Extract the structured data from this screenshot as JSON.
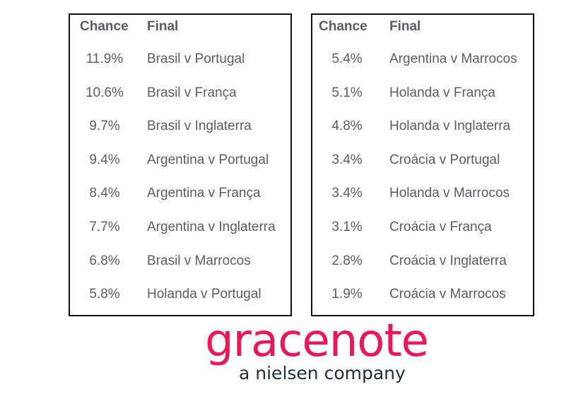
{
  "headers": {
    "chance": "Chance",
    "final": "Final"
  },
  "left": [
    {
      "chance": "11.9%",
      "final": "Brasil v Portugal"
    },
    {
      "chance": "10.6%",
      "final": "Brasil v França"
    },
    {
      "chance": "9.7%",
      "final": "Brasil v Inglaterra"
    },
    {
      "chance": "9.4%",
      "final": "Argentina v Portugal"
    },
    {
      "chance": "8.4%",
      "final": "Argentina v França"
    },
    {
      "chance": "7.7%",
      "final": "Argentina v Inglaterra"
    },
    {
      "chance": "6.8%",
      "final": "Brasil v Marrocos"
    },
    {
      "chance": "5.8%",
      "final": "Holanda v Portugal"
    }
  ],
  "right": [
    {
      "chance": "5.4%",
      "final": "Argentina v Marrocos"
    },
    {
      "chance": "5.1%",
      "final": "Holanda v França"
    },
    {
      "chance": "4.8%",
      "final": "Holanda v Inglaterra"
    },
    {
      "chance": "3.4%",
      "final": "Croácia v Portugal"
    },
    {
      "chance": "3.4%",
      "final": "Holanda v Marrocos"
    },
    {
      "chance": "3.1%",
      "final": "Croácia v França"
    },
    {
      "chance": "2.8%",
      "final": "Croácia v Inglaterra"
    },
    {
      "chance": "1.9%",
      "final": "Croácia v Marrocos"
    }
  ],
  "logo": {
    "name": "gracenote",
    "tagline": "a nielsen company",
    "color": "#e8185a"
  }
}
